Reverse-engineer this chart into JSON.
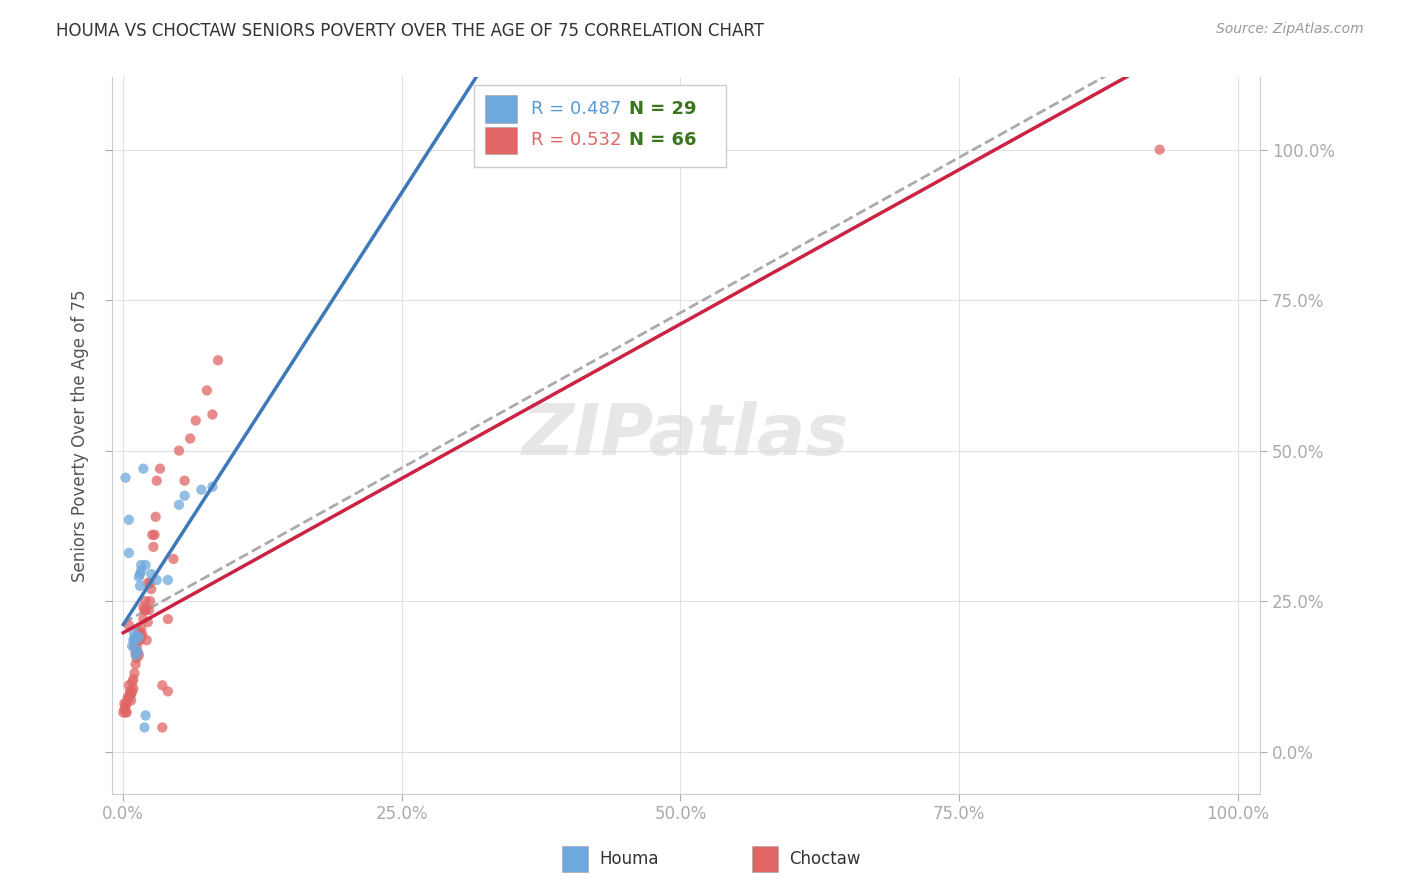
{
  "title": "HOUMA VS CHOCTAW SENIORS POVERTY OVER THE AGE OF 75 CORRELATION CHART",
  "source": "Source: ZipAtlas.com",
  "ylabel": "Seniors Poverty Over the Age of 75",
  "houma_R": 0.487,
  "houma_N": 29,
  "choctaw_R": 0.532,
  "choctaw_N": 66,
  "houma_color": "#6fa8dc",
  "choctaw_color": "#e06666",
  "houma_line_color": "#3d78b8",
  "choctaw_line_color": "#cc2244",
  "combined_line_color": "#aaaaaa",
  "houma_scatter": [
    [
      0.002,
      0.455
    ],
    [
      0.005,
      0.385
    ],
    [
      0.005,
      0.33
    ],
    [
      0.008,
      0.175
    ],
    [
      0.009,
      0.2
    ],
    [
      0.009,
      0.185
    ],
    [
      0.01,
      0.19
    ],
    [
      0.01,
      0.185
    ],
    [
      0.011,
      0.16
    ],
    [
      0.011,
      0.17
    ],
    [
      0.012,
      0.19
    ],
    [
      0.013,
      0.165
    ],
    [
      0.014,
      0.19
    ],
    [
      0.014,
      0.29
    ],
    [
      0.015,
      0.295
    ],
    [
      0.015,
      0.275
    ],
    [
      0.016,
      0.3
    ],
    [
      0.016,
      0.31
    ],
    [
      0.018,
      0.47
    ],
    [
      0.019,
      0.04
    ],
    [
      0.02,
      0.06
    ],
    [
      0.02,
      0.31
    ],
    [
      0.025,
      0.295
    ],
    [
      0.03,
      0.285
    ],
    [
      0.04,
      0.285
    ],
    [
      0.05,
      0.41
    ],
    [
      0.055,
      0.425
    ],
    [
      0.07,
      0.435
    ],
    [
      0.08,
      0.44
    ]
  ],
  "choctaw_scatter": [
    [
      0.0,
      0.065
    ],
    [
      0.001,
      0.07
    ],
    [
      0.001,
      0.08
    ],
    [
      0.002,
      0.065
    ],
    [
      0.002,
      0.075
    ],
    [
      0.003,
      0.065
    ],
    [
      0.003,
      0.08
    ],
    [
      0.004,
      0.085
    ],
    [
      0.004,
      0.09
    ],
    [
      0.005,
      0.09
    ],
    [
      0.005,
      0.11
    ],
    [
      0.005,
      0.21
    ],
    [
      0.006,
      0.095
    ],
    [
      0.006,
      0.1
    ],
    [
      0.007,
      0.085
    ],
    [
      0.007,
      0.095
    ],
    [
      0.008,
      0.1
    ],
    [
      0.008,
      0.115
    ],
    [
      0.009,
      0.105
    ],
    [
      0.009,
      0.12
    ],
    [
      0.01,
      0.13
    ],
    [
      0.01,
      0.175
    ],
    [
      0.011,
      0.145
    ],
    [
      0.011,
      0.165
    ],
    [
      0.012,
      0.155
    ],
    [
      0.012,
      0.175
    ],
    [
      0.013,
      0.165
    ],
    [
      0.013,
      0.185
    ],
    [
      0.014,
      0.16
    ],
    [
      0.014,
      0.2
    ],
    [
      0.015,
      0.185
    ],
    [
      0.015,
      0.195
    ],
    [
      0.016,
      0.19
    ],
    [
      0.016,
      0.205
    ],
    [
      0.017,
      0.195
    ],
    [
      0.018,
      0.22
    ],
    [
      0.018,
      0.24
    ],
    [
      0.019,
      0.235
    ],
    [
      0.02,
      0.235
    ],
    [
      0.02,
      0.25
    ],
    [
      0.021,
      0.185
    ],
    [
      0.022,
      0.215
    ],
    [
      0.022,
      0.28
    ],
    [
      0.023,
      0.235
    ],
    [
      0.024,
      0.25
    ],
    [
      0.024,
      0.28
    ],
    [
      0.025,
      0.27
    ],
    [
      0.026,
      0.36
    ],
    [
      0.027,
      0.34
    ],
    [
      0.028,
      0.36
    ],
    [
      0.029,
      0.39
    ],
    [
      0.03,
      0.45
    ],
    [
      0.033,
      0.47
    ],
    [
      0.035,
      0.04
    ],
    [
      0.035,
      0.11
    ],
    [
      0.04,
      0.1
    ],
    [
      0.04,
      0.22
    ],
    [
      0.045,
      0.32
    ],
    [
      0.05,
      0.5
    ],
    [
      0.055,
      0.45
    ],
    [
      0.06,
      0.52
    ],
    [
      0.065,
      0.55
    ],
    [
      0.075,
      0.6
    ],
    [
      0.08,
      0.56
    ],
    [
      0.085,
      0.65
    ],
    [
      0.93,
      1.0
    ]
  ],
  "xlim": [
    -0.01,
    1.02
  ],
  "ylim": [
    -0.07,
    1.12
  ],
  "xticks": [
    0.0,
    0.25,
    0.5,
    0.75,
    1.0
  ],
  "yticks": [
    0.0,
    0.25,
    0.5,
    0.75,
    1.0
  ],
  "xticklabels": [
    "0.0%",
    "25.0%",
    "50.0%",
    "75.0%",
    "100.0%"
  ],
  "yticklabels": [
    "0.0%",
    "25.0%",
    "50.0%",
    "75.0%",
    "100.0%"
  ],
  "right_yticklabels": [
    "0.0%",
    "25.0%",
    "50.0%",
    "75.0%",
    "100.0%"
  ],
  "watermark": "ZIPatlas",
  "background_color": "#ffffff",
  "grid_color": "#e0e0e0"
}
